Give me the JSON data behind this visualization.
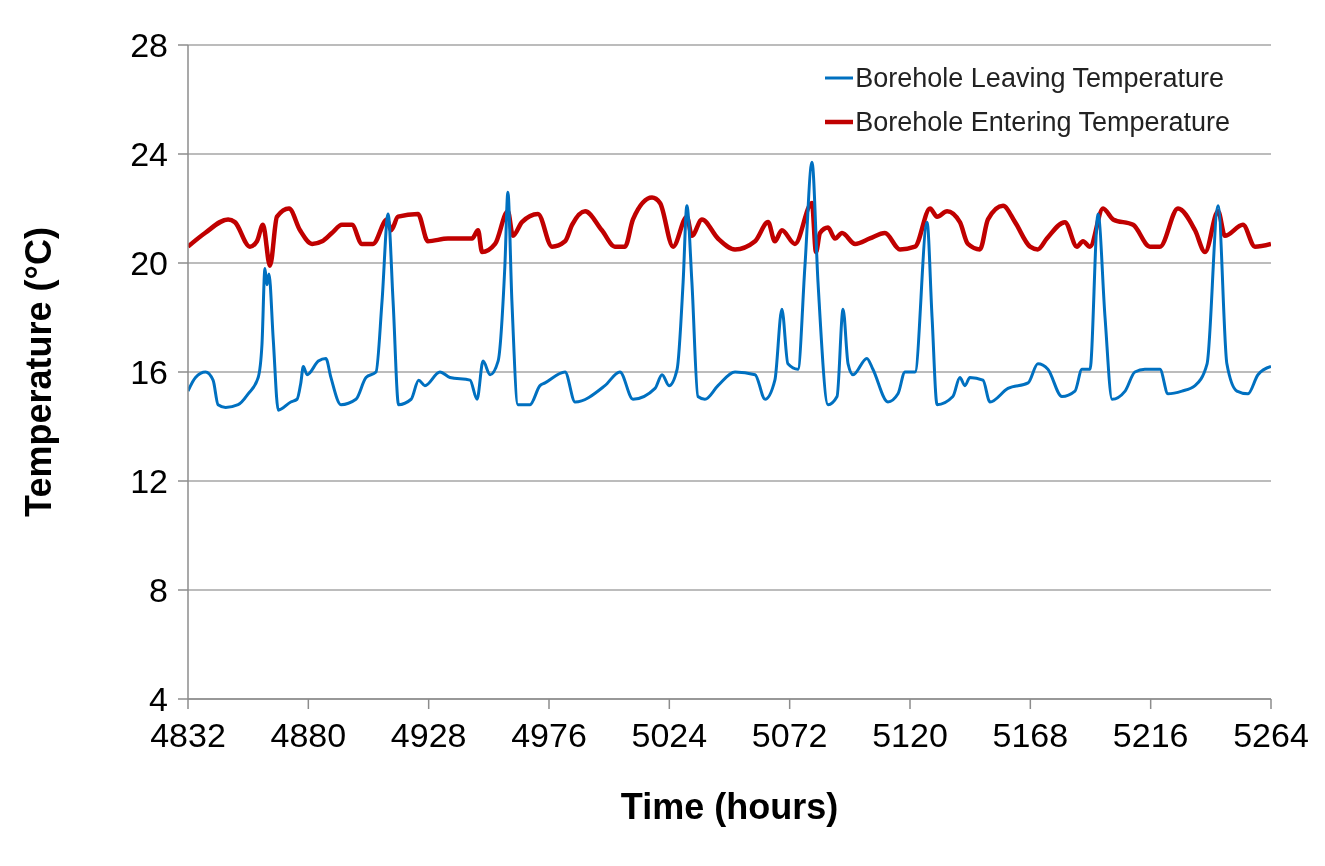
{
  "chart_data": {
    "type": "line",
    "xlabel": "Time (hours)",
    "ylabel": "Temperature (°C)",
    "xlim": [
      4832,
      5264
    ],
    "xticks": [
      4832,
      4880,
      4928,
      4976,
      5024,
      5072,
      5120,
      5168,
      5216,
      5264
    ],
    "ylim": [
      4,
      28
    ],
    "yticks": [
      4,
      8,
      12,
      16,
      20,
      24,
      28
    ],
    "grid": "y",
    "legend": "top right",
    "marker": "none",
    "line_style": "solid",
    "series": [
      {
        "name": "Borehole Leaving Temperature",
        "color": "#0070c0",
        "x": [
          4832,
          4835,
          4839,
          4842,
          4844,
          4847,
          4852,
          4856,
          4860,
          4861.5,
          4862.7,
          4863.5,
          4864.3,
          4866,
          4868,
          4873,
          4875.5,
          4877,
          4878,
          4879.5,
          4884,
          4887,
          4889,
          4893,
          4899,
          4903,
          4907,
          4909.4,
          4911.8,
          4913.8,
          4916,
          4921,
          4924,
          4926.5,
          4932.5,
          4936.5,
          4944.5,
          4947.3,
          4949.7,
          4952.5,
          4955.7,
          4958.4,
          4959.6,
          4961.2,
          4963.6,
          4968.4,
          4972.4,
          4974.4,
          4982.4,
          4986.4,
          4998.3,
          5004.3,
          5009.5,
          5018.3,
          5021.1,
          5023.9,
          5027.1,
          5029.5,
          5031,
          5033,
          5035.4,
          5038.2,
          5043.4,
          5050.2,
          5058.2,
          5062.2,
          5066.1,
          5068.9,
          5071.3,
          5075.3,
          5078.1,
          5080.9,
          5083.3,
          5087.3,
          5090.9,
          5093.3,
          5095.3,
          5097.3,
          5102.8,
          5105.2,
          5111.2,
          5115.2,
          5118,
          5122,
          5126.8,
          5128.8,
          5130.8,
          5137.1,
          5139.9,
          5141.9,
          5143.9,
          5149.1,
          5151.9,
          5159.1,
          5167.1,
          5171,
          5175,
          5180.6,
          5185.8,
          5188.6,
          5191.8,
          5195,
          5197.8,
          5200.6,
          5205.8,
          5209.7,
          5213.7,
          5219.7,
          5222.9,
          5228.5,
          5233.7,
          5238.5,
          5242.9,
          5246.4,
          5250.4,
          5254.8,
          5258.8,
          5264
        ],
        "values": [
          15.3,
          15.8,
          16.0,
          15.7,
          14.8,
          14.7,
          14.8,
          15.2,
          15.8,
          17.0,
          19.8,
          19.2,
          19.6,
          17.2,
          14.6,
          14.9,
          15.0,
          15.6,
          16.2,
          15.9,
          16.4,
          16.5,
          15.8,
          14.8,
          15.0,
          15.8,
          16.0,
          18.6,
          21.8,
          18.6,
          14.8,
          15.0,
          15.7,
          15.5,
          16.0,
          15.8,
          15.7,
          15.0,
          16.4,
          15.9,
          16.4,
          19.9,
          22.6,
          18.6,
          14.8,
          14.8,
          15.5,
          15.6,
          16.0,
          14.9,
          15.5,
          16.0,
          15.0,
          15.4,
          15.9,
          15.5,
          16.1,
          19.3,
          22.1,
          19.3,
          15.1,
          15.0,
          15.5,
          16.0,
          15.9,
          15.0,
          15.7,
          18.3,
          16.3,
          16.1,
          19.9,
          23.7,
          19.3,
          14.8,
          15.1,
          18.3,
          16.3,
          15.9,
          16.5,
          16.1,
          14.9,
          15.2,
          16.0,
          16.0,
          21.5,
          18.0,
          14.8,
          15.1,
          15.8,
          15.5,
          15.8,
          15.7,
          14.9,
          15.4,
          15.6,
          16.3,
          16.1,
          15.1,
          15.3,
          16.1,
          16.1,
          21.8,
          18.0,
          15.0,
          15.3,
          16.0,
          16.1,
          16.1,
          15.2,
          15.3,
          15.5,
          16.3,
          22.1,
          16.3,
          15.3,
          15.2,
          15.9,
          16.2
        ]
      },
      {
        "name": "Borehole Entering Temperature",
        "color": "#c00000",
        "x": [
          4832,
          4838.8,
          4848,
          4850.7,
          4856.7,
          4859.5,
          4861.9,
          4864.7,
          4867.5,
          4872.3,
          4876.7,
          4881.5,
          4885.5,
          4889.4,
          4893.4,
          4897.4,
          4901.4,
          4905.8,
          4911.4,
          4913,
          4915.8,
          4923.7,
          4927.7,
          4935.7,
          4945.3,
          4947.7,
          4949.3,
          4954.5,
          4959.6,
          4961.6,
          4965.2,
          4971.6,
          4977.2,
          4982.4,
          4985.2,
          4990.4,
          4997.1,
          5002.3,
          5006.3,
          5009.5,
          5017.1,
          5020.3,
          5025.5,
          5031,
          5033,
          5037,
          5043.4,
          5050.2,
          5058.2,
          5063.4,
          5066.1,
          5068.9,
          5074.1,
          5080.9,
          5082.5,
          5084.1,
          5087.3,
          5090.1,
          5092.9,
          5098.1,
          5104,
          5110,
          5116,
          5122,
          5128,
          5130.8,
          5134.8,
          5139.9,
          5143.1,
          5147.9,
          5151.1,
          5157.1,
          5161.9,
          5167.9,
          5171,
          5174.6,
          5181.8,
          5186.6,
          5189,
          5191.8,
          5197,
          5201,
          5209,
          5215.7,
          5219.7,
          5226.9,
          5233.7,
          5237.7,
          5242.9,
          5245.6,
          5252.8,
          5257.6,
          5264
        ],
        "values": [
          20.6,
          21.1,
          21.6,
          21.5,
          20.6,
          20.8,
          21.4,
          19.9,
          21.7,
          22.0,
          21.2,
          20.7,
          20.8,
          21.1,
          21.4,
          21.4,
          20.7,
          20.7,
          21.6,
          21.2,
          21.7,
          21.8,
          20.8,
          20.9,
          20.9,
          21.2,
          20.4,
          20.7,
          21.9,
          21.0,
          21.5,
          21.8,
          20.6,
          20.8,
          21.4,
          21.9,
          21.2,
          20.6,
          20.6,
          21.6,
          22.4,
          22.2,
          20.6,
          21.7,
          21.0,
          21.6,
          20.9,
          20.5,
          20.8,
          21.5,
          20.8,
          21.2,
          20.7,
          22.2,
          20.4,
          21.1,
          21.3,
          20.9,
          21.1,
          20.7,
          20.9,
          21.1,
          20.5,
          20.6,
          22.0,
          21.7,
          21.9,
          21.5,
          20.7,
          20.5,
          21.6,
          22.1,
          21.5,
          20.6,
          20.5,
          20.9,
          21.5,
          20.6,
          20.8,
          20.6,
          22.0,
          21.6,
          21.4,
          20.6,
          20.6,
          22.0,
          21.2,
          20.4,
          21.9,
          21.0,
          21.4,
          20.6,
          20.7
        ]
      }
    ]
  }
}
